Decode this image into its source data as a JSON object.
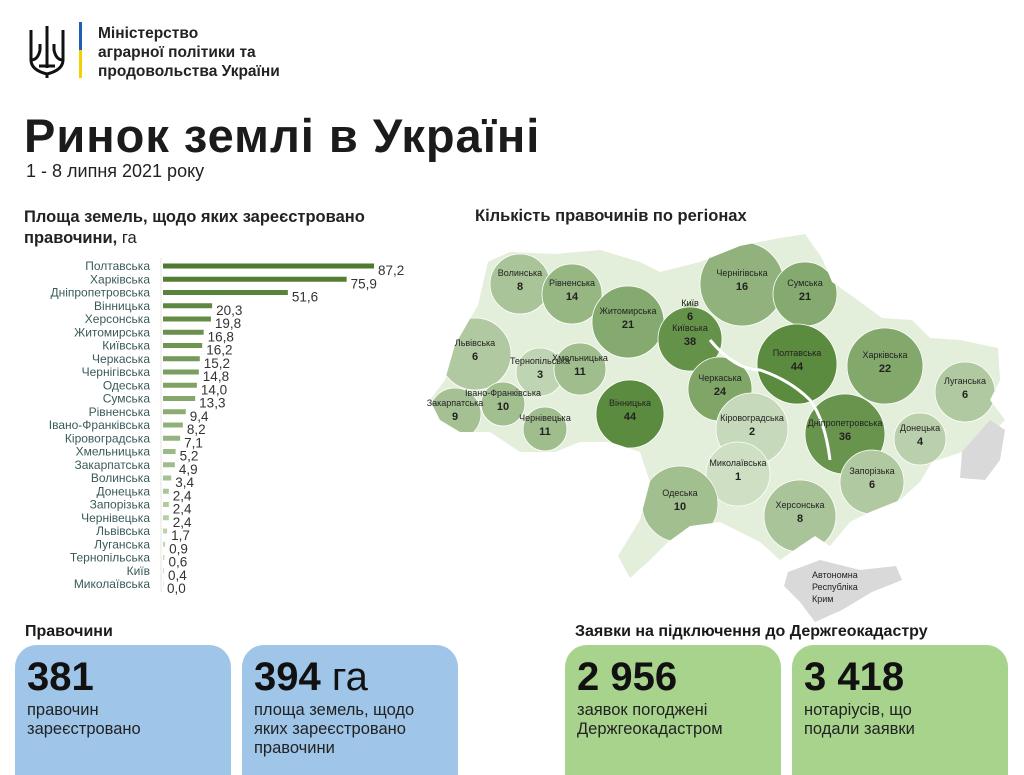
{
  "header": {
    "ministry_lines": [
      "Міністерство",
      "аграрної політики та",
      "продовольства України"
    ],
    "title": "Ринок землі в Україні",
    "subtitle": "1 - 8 липня 2021 року"
  },
  "colors": {
    "bar_dark": "#4d7a2e",
    "bar_light": "#c7dcb6",
    "map_dark": "#5b8b3e",
    "map_light": "#e3eedb",
    "card_blue": "#9fc5e8",
    "card_green": "#a8d38c",
    "no_data": "#d9d9d9"
  },
  "chart_data": [
    {
      "type": "bar",
      "orientation": "horizontal",
      "title": "Площа земель, щодо яких зареєстровано правочини",
      "unit": "га",
      "categories": [
        "Полтавська",
        "Харківська",
        "Дніпропетровська",
        "Вінницька",
        "Херсонська",
        "Житомирська",
        "Київська",
        "Черкаська",
        "Чернігівська",
        "Одеська",
        "Сумська",
        "Рівненська",
        "Івано-Франківська",
        "Кіровоградська",
        "Хмельницька",
        "Закарпатська",
        "Волинська",
        "Донецька",
        "Запорізька",
        "Чернівецька",
        "Львівська",
        "Луганська",
        "Тернопільська",
        "Київ",
        "Миколаївська"
      ],
      "values": [
        87.2,
        75.9,
        51.6,
        20.3,
        19.8,
        16.8,
        16.2,
        15.2,
        14.8,
        14.0,
        13.3,
        9.4,
        8.2,
        7.1,
        5.2,
        4.9,
        3.4,
        2.4,
        2.4,
        2.4,
        1.7,
        0.9,
        0.6,
        0.4,
        0.0
      ],
      "value_labels": [
        "87,2",
        "75,9",
        "51,6",
        "20,3",
        "19,8",
        "16,8",
        "16,2",
        "15,2",
        "14,8",
        "14,0",
        "13,3",
        "9,4",
        "8,2",
        "7,1",
        "5,2",
        "4,9",
        "3,4",
        "2,4",
        "2,4",
        "2,4",
        "1,7",
        "0,9",
        "0,6",
        "0,4",
        "0,0"
      ]
    },
    {
      "type": "choropleth",
      "title": "Кількість правочинів по регіонах",
      "regions": [
        {
          "name": "Волинська",
          "value": 8
        },
        {
          "name": "Рівненська",
          "value": 14
        },
        {
          "name": "Житомирська",
          "value": 21
        },
        {
          "name": "Київ",
          "value": 6
        },
        {
          "name": "Київська",
          "value": 38
        },
        {
          "name": "Чернігівська",
          "value": 16
        },
        {
          "name": "Сумська",
          "value": 21
        },
        {
          "name": "Львівська",
          "value": 6
        },
        {
          "name": "Тернопільська",
          "value": 3
        },
        {
          "name": "Хмельницька",
          "value": 11
        },
        {
          "name": "Вінницька",
          "value": 44
        },
        {
          "name": "Черкаська",
          "value": 24
        },
        {
          "name": "Полтавська",
          "value": 44
        },
        {
          "name": "Харківська",
          "value": 22
        },
        {
          "name": "Луганська",
          "value": 6
        },
        {
          "name": "Івано-Франківська",
          "value": 10
        },
        {
          "name": "Закарпатська",
          "value": 9
        },
        {
          "name": "Чернівецька",
          "value": 11
        },
        {
          "name": "Кіровоградська",
          "value": 2
        },
        {
          "name": "Дніпропетровська",
          "value": 36
        },
        {
          "name": "Донецька",
          "value": 4
        },
        {
          "name": "Миколаївська",
          "value": 1
        },
        {
          "name": "Запорізька",
          "value": 6
        },
        {
          "name": "Одеська",
          "value": 10
        },
        {
          "name": "Херсонська",
          "value": 8
        }
      ],
      "no_data_region": "Автономна Республіка Крим"
    }
  ],
  "stats": {
    "left_title": "Правочини",
    "right_title": "Заявки на підключення до Держгеокадастру",
    "cards": [
      {
        "number": "381",
        "unit": "",
        "desc": [
          "правочин",
          "зареєстровано"
        ]
      },
      {
        "number": "394",
        "unit": "га",
        "desc": [
          "площа земель, щодо",
          "яких зареєстровано",
          "правочини"
        ]
      },
      {
        "number": "2 956",
        "unit": "",
        "desc": [
          "заявок погоджені",
          "Держгеокадастром"
        ]
      },
      {
        "number": "3 418",
        "unit": "",
        "desc": [
          "нотаріусів, що",
          "подали заявки"
        ]
      }
    ]
  }
}
